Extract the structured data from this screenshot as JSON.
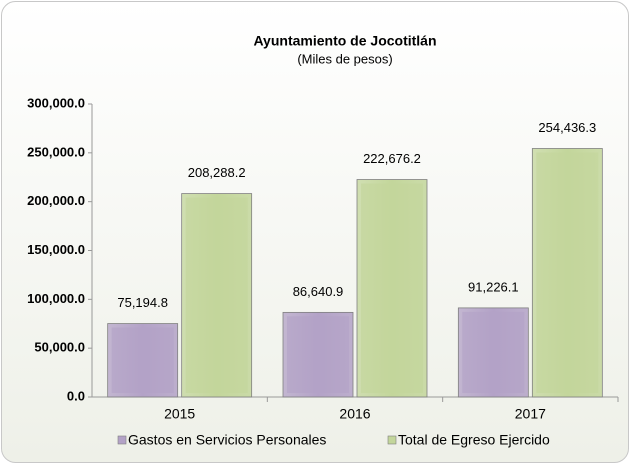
{
  "chart_data": {
    "type": "bar",
    "title": "Ayuntamiento de Jocotitlán",
    "subtitle": "(Miles de pesos)",
    "categories": [
      "2015",
      "2016",
      "2017"
    ],
    "series": [
      {
        "name": "Gastos en Servicios Personales",
        "color": "#b3a2c7",
        "values": [
          75194.8,
          86640.9,
          91226.1
        ],
        "value_labels": [
          "75,194.8",
          "86,640.9",
          "91,226.1"
        ]
      },
      {
        "name": "Total de Egreso Ejercido",
        "color": "#c3d69b",
        "values": [
          208288.2,
          222676.2,
          254436.3
        ],
        "value_labels": [
          "208,288.2",
          "222,676.2",
          "254,436.3"
        ]
      }
    ],
    "ylim": [
      0,
      300000
    ],
    "yticks": [
      {
        "value": 0,
        "label": "0.0"
      },
      {
        "value": 50000,
        "label": "50,000.0"
      },
      {
        "value": 100000,
        "label": "100,000.0"
      },
      {
        "value": 150000,
        "label": "150,000.0"
      },
      {
        "value": 200000,
        "label": "200,000.0"
      },
      {
        "value": 250000,
        "label": "250,000.0"
      },
      {
        "value": 300000,
        "label": "300,000.0"
      }
    ],
    "grid": false,
    "legend": "bottom"
  }
}
